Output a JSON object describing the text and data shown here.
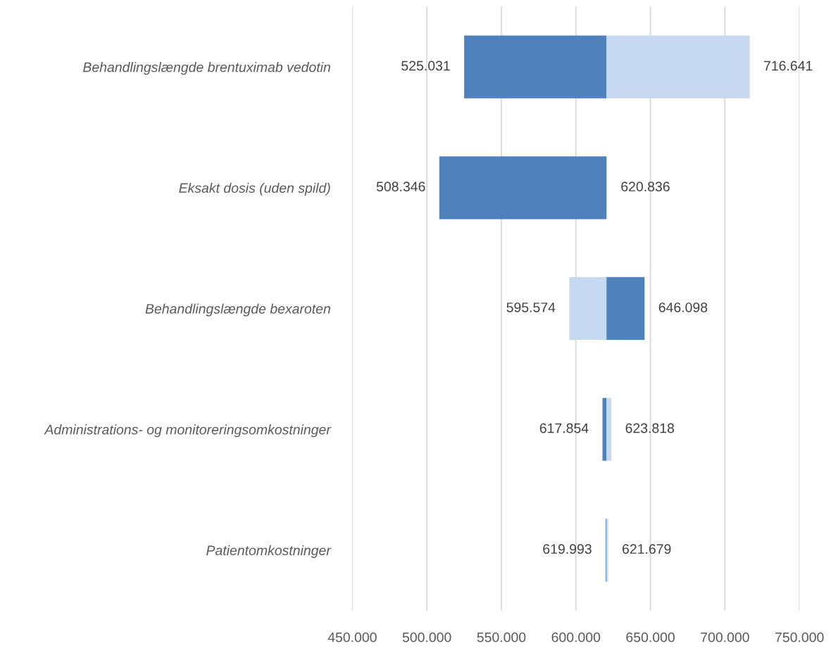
{
  "chart_data": {
    "type": "bar",
    "orientation": "horizontal",
    "categories": [
      "Behandlingslængde brentuximab vedotin",
      "Eksakt dosis (uden spild)",
      "Behandlingslængde bexaroten",
      "Administrations- og monitoreringsomkostninger",
      "Patientomkostninger"
    ],
    "series": [
      {
        "color": "#4f81bd",
        "base": [
          620500,
          620500,
          620500,
          620500,
          620500
        ],
        "values": [
          -95469,
          -112154,
          25598,
          -2646,
          -507
        ],
        "value_labels": [
          "525.031",
          "508.346",
          "646.098",
          "617.854",
          "619.993"
        ]
      },
      {
        "color": "#c6d9f0",
        "base": [
          620500,
          620500,
          620500,
          620500,
          620500
        ],
        "values": [
          96141,
          336,
          -24926,
          3318,
          1179
        ],
        "value_labels": [
          "716.641",
          "620.836",
          "595.574",
          "623.818",
          "621.679"
        ]
      }
    ],
    "xlim": [
      450000,
      750000
    ],
    "xticks": [
      {
        "value": 450000,
        "label": "450.000"
      },
      {
        "value": 500000,
        "label": "500.000"
      },
      {
        "value": 550000,
        "label": "550.000"
      },
      {
        "value": 600000,
        "label": "600.000"
      },
      {
        "value": 650000,
        "label": "650.000"
      },
      {
        "value": 700000,
        "label": "700.000"
      },
      {
        "value": 750000,
        "label": "750.000"
      }
    ],
    "grid": "x",
    "legend": false
  }
}
